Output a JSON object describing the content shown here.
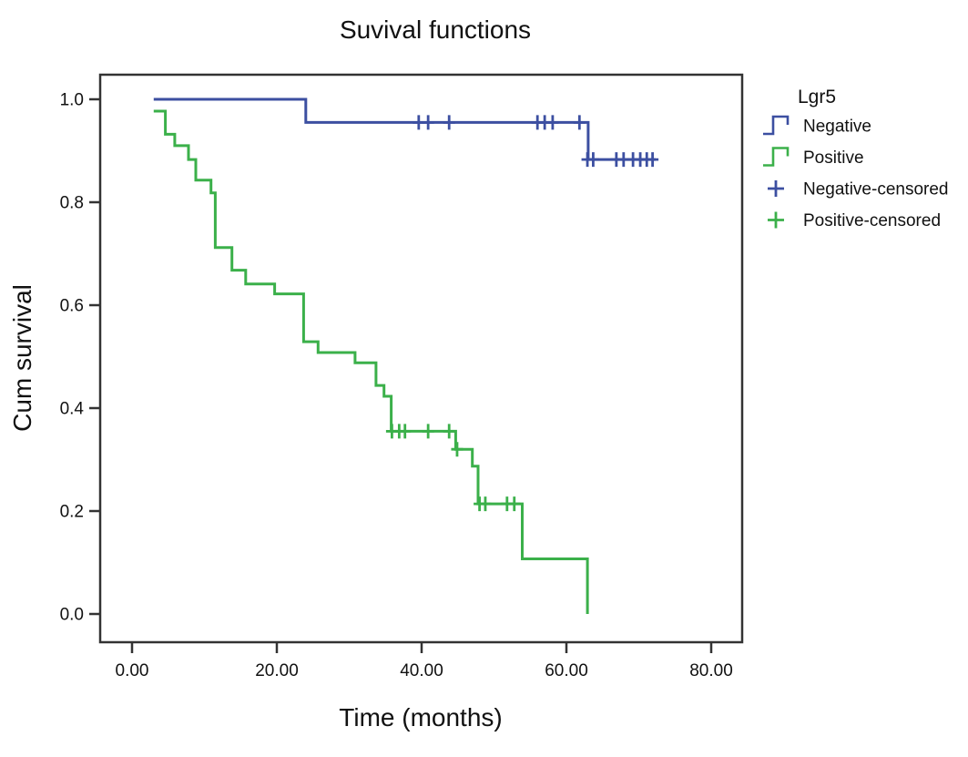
{
  "page": {
    "background_color": "#ffffff",
    "text_color": "#111111",
    "axis_color": "#333333"
  },
  "chart_data": {
    "type": "line",
    "subtype": "kaplan-meier-step",
    "title": "Suvival functions",
    "xlabel": "Time (months)",
    "ylabel": "Cum survival",
    "grid": false,
    "xlim": [
      -4.4,
      84.3
    ],
    "ylim": [
      -0.055,
      1.048
    ],
    "x_ticks": {
      "values": [
        0,
        20,
        40,
        60,
        80
      ],
      "labels": [
        "0.00",
        "20.00",
        "40.00",
        "60.00",
        "80.00"
      ]
    },
    "y_ticks": {
      "values": [
        0.0,
        0.2,
        0.4,
        0.6,
        0.8,
        1.0
      ],
      "labels": [
        "0.0",
        "0.2",
        "0.4",
        "0.6",
        "0.8",
        "1.0"
      ]
    },
    "legend": {
      "title": "Lgr5",
      "position": "right-top",
      "entries": [
        {
          "label": "Negative",
          "glyph": "step",
          "color": "#3c4fa1"
        },
        {
          "label": "Positive",
          "glyph": "step",
          "color": "#3bb04a"
        },
        {
          "label": "Negative-censored",
          "glyph": "plus",
          "color": "#3c4fa1"
        },
        {
          "label": "Positive-censored",
          "glyph": "plus",
          "color": "#3bb04a"
        }
      ]
    },
    "series": [
      {
        "name": "Negative",
        "color": "#3c4fa1",
        "steps": [
          [
            3,
            1.0
          ],
          [
            24,
            0.955
          ],
          [
            63,
            0.883
          ]
        ],
        "end_x": 72.3,
        "censored": [
          [
            39.6,
            0.955
          ],
          [
            40.9,
            0.955
          ],
          [
            43.8,
            0.955
          ],
          [
            56.0,
            0.955
          ],
          [
            57.0,
            0.955
          ],
          [
            58.1,
            0.955
          ],
          [
            61.8,
            0.955
          ],
          [
            62.9,
            0.883
          ],
          [
            63.7,
            0.883
          ],
          [
            66.9,
            0.883
          ],
          [
            67.9,
            0.883
          ],
          [
            69.2,
            0.883
          ],
          [
            70.2,
            0.883
          ],
          [
            71.1,
            0.883
          ],
          [
            71.9,
            0.883
          ]
        ]
      },
      {
        "name": "Positive",
        "color": "#3bb04a",
        "steps": [
          [
            3,
            0.977
          ],
          [
            4.6,
            0.932
          ],
          [
            5.9,
            0.91
          ],
          [
            7.8,
            0.883
          ],
          [
            8.8,
            0.843
          ],
          [
            10.9,
            0.818
          ],
          [
            11.5,
            0.712
          ],
          [
            13.8,
            0.668
          ],
          [
            15.7,
            0.641
          ],
          [
            19.7,
            0.622
          ],
          [
            23.7,
            0.529
          ],
          [
            25.7,
            0.508
          ],
          [
            30.8,
            0.488
          ],
          [
            33.7,
            0.444
          ],
          [
            34.8,
            0.423
          ],
          [
            35.8,
            0.355
          ],
          [
            44.7,
            0.32
          ],
          [
            47.0,
            0.287
          ],
          [
            47.8,
            0.214
          ],
          [
            53.9,
            0.107
          ],
          [
            62.9,
            0.0
          ]
        ],
        "end_x": 62.9,
        "censored": [
          [
            35.9,
            0.355
          ],
          [
            36.9,
            0.355
          ],
          [
            37.7,
            0.355
          ],
          [
            40.9,
            0.355
          ],
          [
            43.8,
            0.355
          ],
          [
            44.9,
            0.32
          ],
          [
            48.0,
            0.214
          ],
          [
            48.8,
            0.214
          ],
          [
            51.8,
            0.214
          ],
          [
            52.8,
            0.214
          ]
        ]
      }
    ]
  }
}
